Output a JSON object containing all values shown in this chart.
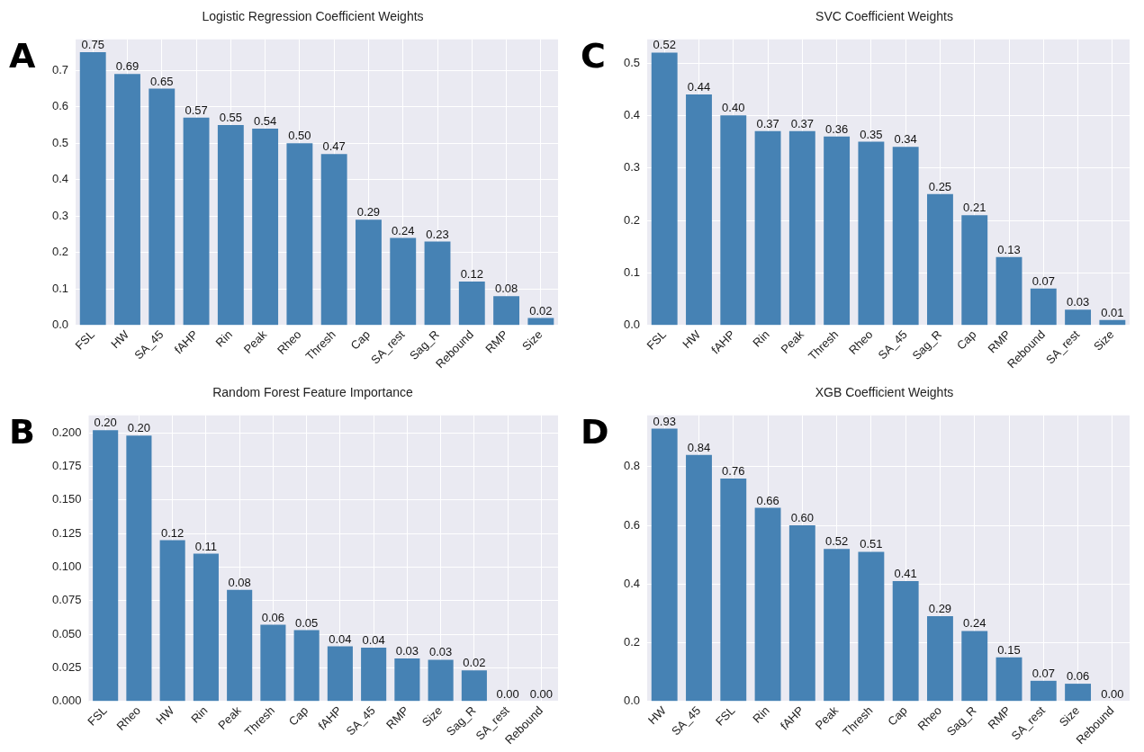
{
  "chart_data": [
    {
      "type": "bar",
      "title": "Logistic Regression Coefficient Weights",
      "annotations": [
        "A"
      ],
      "categories": [
        "FSL",
        "HW",
        "SA_45",
        "fAHP",
        "Rin",
        "Peak",
        "Rheo",
        "Thresh",
        "Cap",
        "SA_rest",
        "Sag_R",
        "Rebound",
        "RMP",
        "Size"
      ],
      "values": [
        0.75,
        0.69,
        0.65,
        0.57,
        0.55,
        0.54,
        0.5,
        0.47,
        0.29,
        0.24,
        0.23,
        0.12,
        0.08,
        0.02
      ],
      "value_labels": [
        "0.75",
        "0.69",
        "0.65",
        "0.57",
        "0.55",
        "0.54",
        "0.50",
        "0.47",
        "0.29",
        "0.24",
        "0.23",
        "0.12",
        "0.08",
        "0.02"
      ],
      "color": "#4682b4",
      "ylim": [
        0,
        0.785
      ],
      "yticks": [
        {
          "value": 0,
          "label": "0.0"
        },
        0.1,
        0.2,
        0.3,
        0.4,
        0.5,
        0.6,
        0.7
      ],
      "grid": true
    },
    {
      "type": "bar",
      "title": "SVC Coefficient Weights",
      "annotations": [
        "C"
      ],
      "categories": [
        "FSL",
        "HW",
        "fAHP",
        "Rin",
        "Peak",
        "Thresh",
        "Rheo",
        "SA_45",
        "Sag_R",
        "Cap",
        "RMP",
        "Rebound",
        "SA_rest",
        "Size"
      ],
      "values": [
        0.52,
        0.44,
        0.4,
        0.37,
        0.37,
        0.36,
        0.35,
        0.34,
        0.25,
        0.21,
        0.13,
        0.07,
        0.03,
        0.01
      ],
      "value_labels": [
        "0.52",
        "0.44",
        "0.40",
        "0.37",
        "0.37",
        "0.36",
        "0.35",
        "0.34",
        "0.25",
        "0.21",
        "0.13",
        "0.07",
        "0.03",
        "0.01"
      ],
      "color": "#4682b4",
      "ylim": [
        0,
        0.545
      ],
      "yticks": [
        {
          "value": 0,
          "label": "0.0"
        },
        0.1,
        0.2,
        0.3,
        0.4,
        0.5
      ],
      "grid": true
    },
    {
      "type": "bar",
      "title": "Random Forest Feature Importance",
      "annotations": [
        "B"
      ],
      "categories": [
        "FSL",
        "Rheo",
        "HW",
        "Rin",
        "Peak",
        "Thresh",
        "Cap",
        "fAHP",
        "SA_45",
        "RMP",
        "Size",
        "Sag_R",
        "SA_rest",
        "Rebound"
      ],
      "values": [
        0.202,
        0.198,
        0.12,
        0.11,
        0.083,
        0.057,
        0.053,
        0.041,
        0.04,
        0.032,
        0.031,
        0.023,
        0,
        0
      ],
      "value_labels": [
        "0.20",
        "0.20",
        "0.12",
        "0.11",
        "0.08",
        "0.06",
        "0.05",
        "0.04",
        "0.04",
        "0.03",
        "0.03",
        "0.02",
        "0.00",
        "0.00"
      ],
      "color": "#4682b4",
      "ylim": [
        0,
        0.213
      ],
      "yticks": [
        {
          "value": 0,
          "label": "0.000"
        },
        {
          "value": 0.025,
          "label": "0.025"
        },
        {
          "value": 0.05,
          "label": "0.050"
        },
        {
          "value": 0.075,
          "label": "0.075"
        },
        {
          "value": 0.1,
          "label": "0.100"
        },
        {
          "value": 0.125,
          "label": "0.125"
        },
        {
          "value": 0.15,
          "label": "0.150"
        },
        {
          "value": 0.175,
          "label": "0.175"
        },
        {
          "value": 0.2,
          "label": "0.200"
        }
      ],
      "grid": true
    },
    {
      "type": "bar",
      "title": "XGB Coefficient Weights",
      "annotations": [
        "D"
      ],
      "categories": [
        "HW",
        "SA_45",
        "FSL",
        "Rin",
        "fAHP",
        "Peak",
        "Thresh",
        "Cap",
        "Rheo",
        "Sag_R",
        "RMP",
        "SA_rest",
        "Size",
        "Rebound"
      ],
      "values": [
        0.93,
        0.84,
        0.76,
        0.66,
        0.6,
        0.52,
        0.51,
        0.41,
        0.29,
        0.24,
        0.15,
        0.07,
        0.06,
        0
      ],
      "value_labels": [
        "0.93",
        "0.84",
        "0.76",
        "0.66",
        "0.60",
        "0.52",
        "0.51",
        "0.41",
        "0.29",
        "0.24",
        "0.15",
        "0.07",
        "0.06",
        "0.00"
      ],
      "color": "#4682b4",
      "ylim": [
        0,
        0.975
      ],
      "yticks": [
        {
          "value": 0,
          "label": "0.0"
        },
        0.2,
        0.4,
        0.6,
        0.8
      ],
      "grid": true
    }
  ]
}
